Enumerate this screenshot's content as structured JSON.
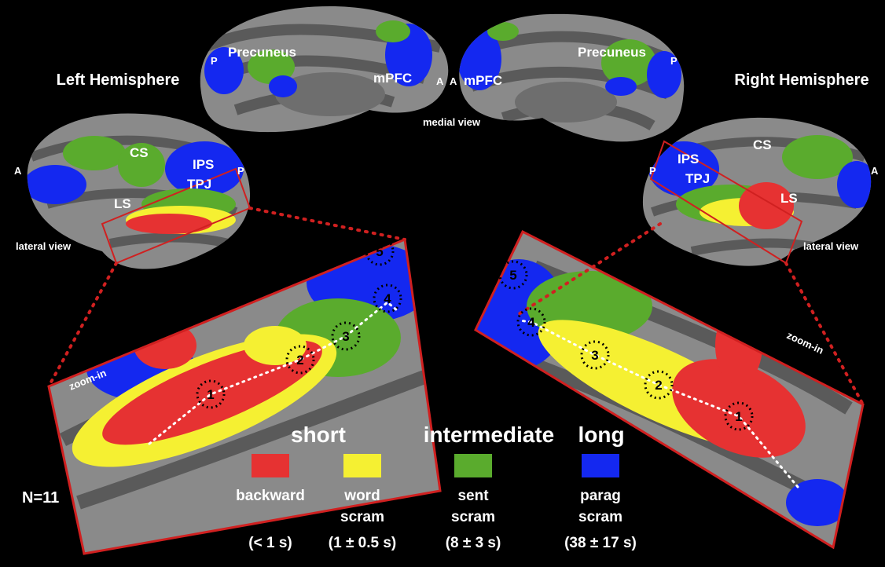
{
  "left_hemisphere": {
    "title": "Left Hemisphere",
    "medial_labels": [
      "P",
      "Precuneus",
      "mPFC",
      "A"
    ],
    "lateral_labels": [
      "A",
      "CS",
      "IPS",
      "P",
      "TPJ",
      "LS"
    ],
    "lateral_view": "lateral view",
    "zoom_label": "zoom-in",
    "rois": [
      "1",
      "2",
      "3",
      "4",
      "5"
    ]
  },
  "right_hemisphere": {
    "title": "Right Hemisphere",
    "medial_labels": [
      "A",
      "mPFC",
      "Precuneus",
      "P"
    ],
    "lateral_labels": [
      "P",
      "IPS",
      "TPJ",
      "CS",
      "A",
      "LS"
    ],
    "lateral_view": "lateral view",
    "zoom_label": "zoom-in",
    "rois": [
      "1",
      "2",
      "3",
      "4",
      "5"
    ]
  },
  "medial_view": "medial view",
  "legend": {
    "groups": [
      "short",
      "intermediate",
      "long"
    ],
    "items": [
      {
        "name": [
          "backward"
        ],
        "timescale": "(< 1 s)",
        "color": "#e63232"
      },
      {
        "name": [
          "word",
          "scram"
        ],
        "timescale": "(1 ± 0.5 s)",
        "color": "#f5f032"
      },
      {
        "name": [
          "sent",
          "scram"
        ],
        "timescale": "(8 ± 3 s)",
        "color": "#5aab2d"
      },
      {
        "name": [
          "parag",
          "scram"
        ],
        "timescale": "(38 ± 17 s)",
        "color": "#1428f0"
      }
    ]
  },
  "sample_size": "N=11"
}
